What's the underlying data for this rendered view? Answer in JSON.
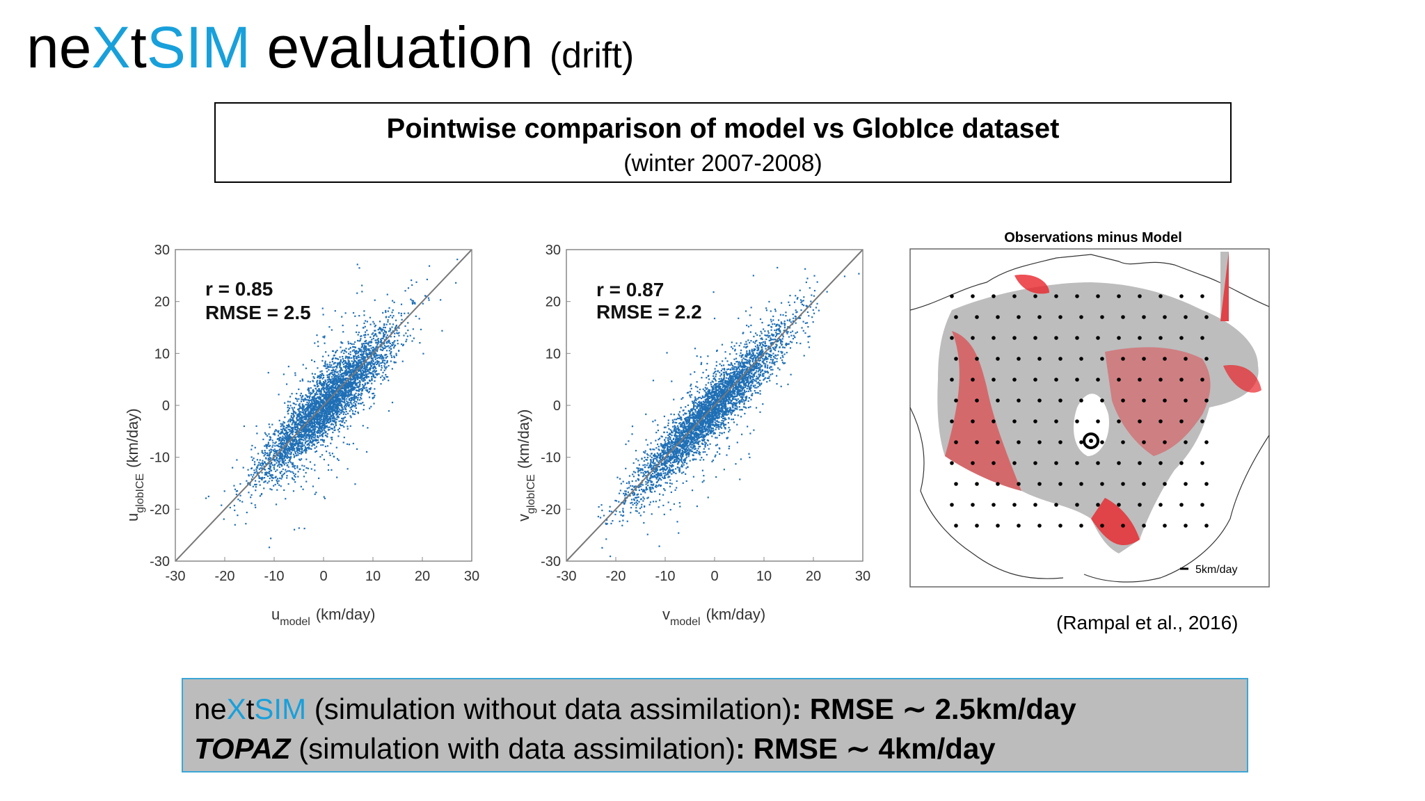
{
  "title": {
    "part1": "ne",
    "part2": "X",
    "part3": "t",
    "part4": "SIM",
    "part5": " evaluation",
    "sub": "(drift)"
  },
  "box": {
    "line1": "Pointwise comparison of model vs GlobIce dataset",
    "line2": "(winter 2007-2008)"
  },
  "reference": "(Rampal et al., 2016)",
  "bottom": {
    "line1": {
      "p1": "ne",
      "p2": "X",
      "p3": "t",
      "p4": "SIM",
      "rest": " (simulation without data assimilation)",
      "bold": ": RMSE ∼ 2.5km/day"
    },
    "line2": {
      "italic": "TOPAZ",
      "rest": " (simulation with data assimilation)",
      "bold": ": RMSE ∼ 4km/day"
    }
  },
  "colors": {
    "accent": "#18a0db",
    "points": "#1f6fb5",
    "map_red": "#e8242a",
    "map_gray": "#bdbdbd"
  },
  "chart_data": [
    {
      "type": "scatter",
      "xlabel": {
        "main": "u",
        "sub": "model",
        "unit": "(km/day)"
      },
      "ylabel": {
        "main": "u",
        "sub": "globICE",
        "unit": "(km/day)"
      },
      "xlim": [
        -30,
        30
      ],
      "ylim": [
        -30,
        30
      ],
      "xticks": [
        "-30",
        "-20",
        "-10",
        "0",
        "10",
        "20",
        "30"
      ],
      "yticks": [
        "-30",
        "-20",
        "-10",
        "0",
        "10",
        "20",
        "30"
      ],
      "annotations": [
        "r = 0.85",
        "RMSE = 2.5"
      ],
      "reference_line": "y = x"
    },
    {
      "type": "scatter",
      "xlabel": {
        "main": "v",
        "sub": "model",
        "unit": "(km/day)"
      },
      "ylabel": {
        "main": "v",
        "sub": "globICE",
        "unit": "(km/day)"
      },
      "xlim": [
        -30,
        30
      ],
      "ylim": [
        -30,
        30
      ],
      "xticks": [
        "-30",
        "-20",
        "-10",
        "0",
        "10",
        "20",
        "30"
      ],
      "yticks": [
        "-30",
        "-20",
        "-10",
        "0",
        "10",
        "20",
        "30"
      ],
      "annotations": [
        "r = 0.87",
        "RMSE = 2.2"
      ],
      "reference_line": "y = x"
    },
    {
      "type": "heatmap",
      "title": "Observations minus Model",
      "legend": "5km/day"
    }
  ]
}
